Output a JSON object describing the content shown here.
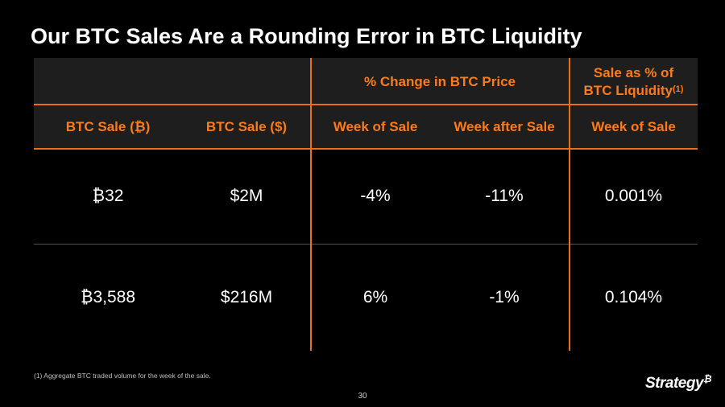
{
  "title": "Our BTC Sales Are a Rounding Error in BTC Liquidity",
  "table": {
    "group_headers": {
      "price_change": "% Change in BTC Price",
      "liquidity_line1": "Sale as % of",
      "liquidity_line2": "BTC Liquidity",
      "liquidity_sup": "(1)"
    },
    "columns": [
      "BTC Sale (₿)",
      "BTC Sale ($)",
      "Week of Sale",
      "Week after Sale",
      "Week of Sale"
    ],
    "rows": [
      [
        "₿32",
        "$2M",
        "-4%",
        "-11%",
        "0.001%"
      ],
      [
        "₿3,588",
        "$216M",
        "6%",
        "-1%",
        "0.104%"
      ]
    ]
  },
  "footnote": "(1) Aggregate BTC traded volume for the week of the sale.",
  "page_number": "30",
  "logo": {
    "text": "Strategy",
    "symbol": "₿"
  },
  "colors": {
    "accent": "#e8711e",
    "header_text": "#ff7a1a",
    "header_bg": "#1e1e1e",
    "background": "#000000"
  }
}
